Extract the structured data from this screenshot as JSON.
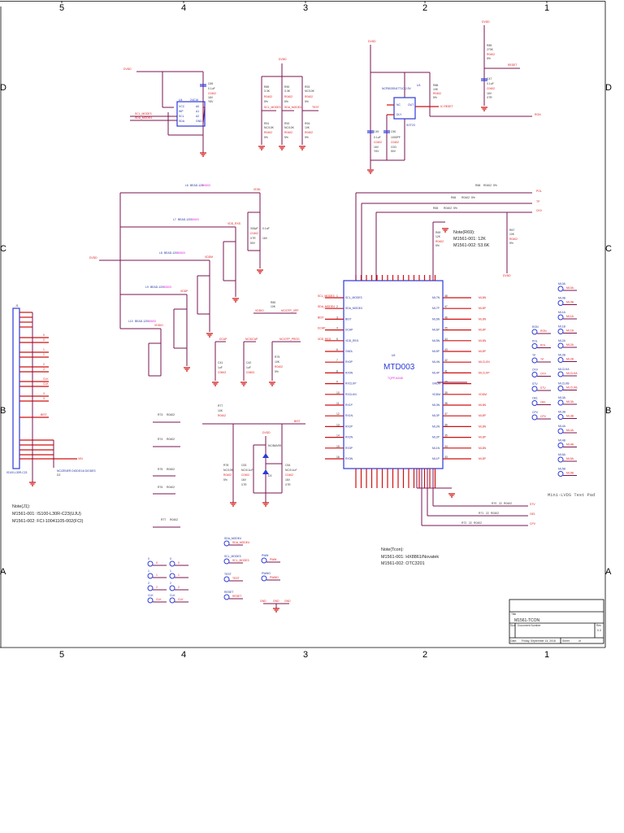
{
  "frame": {
    "col_labels": [
      "5",
      "4",
      "3",
      "2",
      "1"
    ],
    "row_labels": [
      "D",
      "C",
      "B",
      "A"
    ]
  },
  "title_block": {
    "title_label": "Title",
    "title": "M1561-TCON",
    "size_label": "Size",
    "doc_number_label": "Document Number",
    "rev_label": "Rev",
    "rev": "0.3",
    "date_label": "Date:",
    "date": "Friday, September 14, 2018",
    "sheet_label": "Sheet",
    "sheet_of": "of"
  },
  "eeprom": {
    "ref": "U4",
    "part": "24C16",
    "supply": "DVDD",
    "pins_left": [
      "VCC",
      "WP",
      "SCL",
      "SDA"
    ],
    "pins_right": [
      "A0",
      "A1",
      "A2",
      "GND"
    ],
    "nets": [
      "SCL_MODE3",
      "SDA_MODE4"
    ],
    "cap": {
      "ref": "C69",
      "value": "0.1uF",
      "pkg": "C0402",
      "v": "16V",
      "tol": "Y5V"
    }
  },
  "pullups": {
    "supply": "DVDD",
    "top": [
      {
        "ref": "R89",
        "value": "3.3K",
        "pkg": "R0402",
        "tol": "5%",
        "net": "SCL_MODE3"
      },
      {
        "ref": "R90",
        "value": "3.3K",
        "pkg": "R0402",
        "tol": "5%",
        "net": "SDA_MODE4"
      },
      {
        "ref": "R93",
        "value": "NC/10K",
        "pkg": "R0402",
        "tol": "5%",
        "net": "TEST"
      }
    ],
    "bottom": [
      {
        "ref": "R91",
        "value": "NC/10K",
        "pkg": "R0402",
        "tol": "5%"
      },
      {
        "ref": "R92",
        "value": "NC/10K",
        "pkg": "R0402",
        "tol": "5%"
      },
      {
        "ref": "R94",
        "value": "10K",
        "pkg": "R0402",
        "tol": "5%"
      }
    ]
  },
  "reset": {
    "ref": "U3",
    "part": "NCP803SN17T1C-2.9V",
    "pkg": "SOT23",
    "supply": "DVDD",
    "pins": [
      "NC",
      "DLY",
      "VCC",
      "GND",
      "OUT"
    ],
    "out_net": "IC RESET",
    "ron_net": "RON",
    "r": {
      "ref": "R88",
      "value": "10K",
      "pkg": "R0402",
      "tol": "5%"
    },
    "caps": [
      {
        "ref": "C49",
        "value": "0.1uF",
        "pkg": "C0402",
        "v": "16V",
        "tol": "Y5V"
      },
      {
        "ref": "C50",
        "value": "1000PF",
        "pkg": "C0402",
        "v": "C0G",
        "tol": "50V"
      }
    ],
    "por": {
      "ref": "R85",
      "value": "270K",
      "pkg": "R0402",
      "tol": "5%",
      "net": "RESET",
      "supply": "DVDD",
      "cap": {
        "ref": "C47",
        "value": "0.1uF",
        "pkg": "C0402",
        "v": "16V",
        "tol": "X7R"
      }
    }
  },
  "power_filters": {
    "input": "DVDD",
    "rails": [
      {
        "ref": "L6",
        "part": "BEAD-120",
        "pkg": "B0603",
        "net": "VDDL",
        "caps": [
          "C31",
          "C32"
        ]
      },
      {
        "ref": "L7",
        "part": "BEAD-120",
        "pkg": "B0603",
        "net": "VDD_RXS",
        "caps": [
          "C33",
          "C34"
        ]
      },
      {
        "ref": "L8",
        "part": "BEAD-120",
        "pkg": "B0603",
        "net": "VDDM",
        "caps": [
          "C35",
          "C36"
        ]
      },
      {
        "ref": "L9",
        "part": "BEAD-120",
        "pkg": "B0603",
        "net": "VDDP",
        "caps": [
          "C37",
          "C38"
        ]
      },
      {
        "ref": "L10",
        "part": "BEAD-120",
        "pkg": "B0603",
        "net": "VDDIO",
        "caps": [
          "C39",
          "C40"
        ]
      }
    ],
    "cap_values": [
      "330pF",
      "0.1uF"
    ],
    "cap_pkg": "C0402",
    "cap_specs": [
      "X7R",
      "16V",
      "50V"
    ]
  },
  "misc_caps": [
    {
      "ref": "C41",
      "value": "1uF",
      "pkg": "C0603",
      "net": "DCAP"
    },
    {
      "ref": "C42",
      "value": "1uF",
      "pkg": "C0603",
      "net": "NC/DCAP"
    },
    {
      "ref": "R75",
      "value": "10K",
      "pkg": "R0402",
      "tol": "5%",
      "net": "NC/OTP_PROG"
    }
  ],
  "otp": {
    "ref": "R80",
    "value": "10K",
    "pkg": "R0402",
    "net_in": "VDDIO",
    "net_out": "NC/OTP_VPP"
  },
  "connector": {
    "ref": "J1",
    "part": "IS100-L30R-C23",
    "pin_count": 30,
    "signals": [
      "0",
      "0",
      "1",
      "1",
      "2",
      "2",
      "CLK",
      "CLK",
      "3",
      "3",
      "BIST"
    ],
    "vin_net": "VIN",
    "diode": {
      "ref": "D2",
      "part": "NC/ZENER DIODE/16 DIODES"
    }
  },
  "connector_note": {
    "title": "Note(J1):",
    "lines": [
      "M1561-001: IS100-L30R-C23(UJU)",
      "M1561-002: FCI-10041105-002(FCI)"
    ]
  },
  "series_resistors": [
    {
      "ref": "R73",
      "pkg": "R0402",
      "net": "0"
    },
    {
      "ref": "R74",
      "pkg": "R0402",
      "net": "1"
    },
    {
      "ref": "R75",
      "pkg": "R0402",
      "net": "2"
    },
    {
      "ref": "R76",
      "pkg": "R0402",
      "net": "3"
    },
    {
      "ref": "R77",
      "pkg": "R0402",
      "net": "CLK"
    }
  ],
  "bist": {
    "r": {
      "ref": "R77",
      "value": "10K",
      "pkg": "R0402",
      "tol": "5%"
    },
    "rpd": {
      "ref": "R78",
      "value": "NC/10K",
      "pkg": "R0402",
      "tol": "5%"
    },
    "caps": [
      {
        "ref": "C53",
        "value": "NC/0.1uF",
        "pkg": "C0402",
        "v": "16V",
        "tol": "X7R"
      },
      {
        "ref": "C54",
        "value": "NC/0.1uF",
        "pkg": "C0402",
        "v": "16V",
        "tol": "X7R"
      }
    ],
    "diode": {
      "ref": "D3",
      "part": "NC/BAV99"
    },
    "supply": "DVDD",
    "net": "BIST"
  },
  "tcon": {
    "ref": "U5",
    "part": "MTD003",
    "package": "TQFP-64/48",
    "left_pins": [
      {
        "n": "1",
        "name": "SCL_MODE3",
        "net": "SCL_MODE3"
      },
      {
        "n": "2",
        "name": "SDA_MODE4",
        "net": "SDA_MODE4"
      },
      {
        "n": "3",
        "name": "BIST",
        "net": "BIST"
      },
      {
        "n": "4",
        "name": "DCAP",
        "net": "DCAP"
      },
      {
        "n": "5",
        "name": "VDD_REG",
        "net": "VDD_REG"
      },
      {
        "n": "6",
        "name": "GNDL",
        "net": ""
      },
      {
        "n": "7",
        "name": "RX0P",
        "net": ""
      },
      {
        "n": "8",
        "name": "RX0N",
        "net": ""
      },
      {
        "n": "9",
        "name": "RXCLKP",
        "net": ""
      },
      {
        "n": "10",
        "name": "RXCLKN",
        "net": ""
      },
      {
        "n": "11",
        "name": "RX1P",
        "net": ""
      },
      {
        "n": "12",
        "name": "RX1N",
        "net": ""
      },
      {
        "n": "13",
        "name": "RX2P",
        "net": ""
      },
      {
        "n": "14",
        "name": "RX2N",
        "net": ""
      },
      {
        "n": "15",
        "name": "RX3P",
        "net": ""
      },
      {
        "n": "16",
        "name": "RX3N",
        "net": ""
      }
    ],
    "right_pins": [
      {
        "n": "48",
        "name": "ML7N",
        "net": "ML8N"
      },
      {
        "n": "47",
        "name": "ML7P",
        "net": "ML8P"
      },
      {
        "n": "46",
        "name": "ML6N",
        "net": "ML8N"
      },
      {
        "n": "45",
        "name": "ML6P",
        "net": "ML8P"
      },
      {
        "n": "44",
        "name": "ML5N",
        "net": "ML8N"
      },
      {
        "n": "43",
        "name": "ML5P",
        "net": "ML8P"
      },
      {
        "n": "42",
        "name": "ML4N",
        "net": "MLCLKN"
      },
      {
        "n": "41",
        "name": "ML4P",
        "net": "MLCLKP"
      },
      {
        "n": "40",
        "name": "GNDM",
        "net": ""
      },
      {
        "n": "39",
        "name": "VDDM",
        "net": "VDDM"
      },
      {
        "n": "38",
        "name": "ML3N",
        "net": "ML8N"
      },
      {
        "n": "37",
        "name": "ML3P",
        "net": "ML8P"
      },
      {
        "n": "36",
        "name": "ML2N",
        "net": "ML8N"
      },
      {
        "n": "35",
        "name": "ML2P",
        "net": "ML8P"
      },
      {
        "n": "34",
        "name": "ML1N",
        "net": "ML8N"
      },
      {
        "n": "33",
        "name": "ML1P",
        "net": "ML8P"
      }
    ],
    "top_pin_count": 16,
    "bottom_pin_count": 16
  },
  "tcon_outputs": {
    "top": [
      {
        "ref": "R68",
        "value": "22",
        "pkg": "R0402",
        "tol": "5%",
        "net": "POL"
      },
      {
        "ref": "R66",
        "value": "22",
        "pkg": "R0402",
        "tol": "5%",
        "net": "TP"
      },
      {
        "ref": "R65",
        "value": "22",
        "pkg": "R0402",
        "tol": "5%",
        "net": "CKV"
      }
    ],
    "bottom": [
      {
        "ref": "R70",
        "value": "22",
        "pkg": "R0402",
        "tol": "5%",
        "net": "STV"
      },
      {
        "ref": "R71",
        "value": "22",
        "pkg": "R0402",
        "tol": "5%",
        "net": "OE1"
      },
      {
        "ref": "R72",
        "value": "22",
        "pkg": "R0402",
        "tol": "5%",
        "net": "CPV"
      }
    ],
    "rset": {
      "ref": "R69",
      "value": "12K",
      "pkg": "R0402",
      "tol": "5%"
    },
    "r67": {
      "ref": "R67",
      "value": "10K",
      "pkg": "R0402",
      "tol": "5%",
      "net": "DVDD"
    }
  },
  "rset_note": {
    "title": "Note(R69):",
    "lines": [
      "M1561-001: 12K",
      "M1561-002: 53.6K"
    ]
  },
  "tcon_note": {
    "title": "Note(Tcon):",
    "lines": [
      "M1561-001: HX8861/Novatek",
      "M1561-002: OTC3201"
    ]
  },
  "mini_lvds_pads": {
    "caption": "Mini-LVDS Test Pad",
    "left": [
      "RON",
      "POL",
      "TP",
      "CKV",
      "STV",
      "OE1",
      "CPV"
    ],
    "right": [
      "ML0A",
      "ML0B",
      "ML1A",
      "ML1B",
      "ML2A",
      "ML2B",
      "MLCLKA",
      "MLCLKB",
      "ML3A",
      "ML3B",
      "ML4A",
      "ML4B",
      "ML5A",
      "ML5B"
    ]
  },
  "test_points": {
    "lvds": [
      "0",
      "0",
      "1",
      "1",
      "2",
      "2",
      "CLK",
      "CLK"
    ],
    "ctrl": [
      "SDA_MODE4",
      "SCL_MODE3",
      "TEST",
      "RESET"
    ],
    "pwm": [
      "PWM",
      "PWMO"
    ],
    "gnd": [
      "GND",
      "GND",
      "GND"
    ]
  }
}
